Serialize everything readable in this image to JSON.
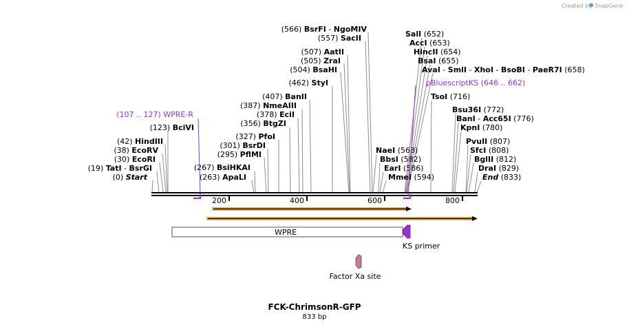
{
  "credit": {
    "text": "Created by",
    "brand": "SnapGene"
  },
  "title": "FCK-ChrimsonR-GFP",
  "length_label": "833 bp",
  "ruler_ticks": [
    "200",
    "400",
    "600",
    "800"
  ],
  "sites": [
    {
      "id": "bsrfi",
      "pos": "(566)",
      "name": "BsrFI",
      "alt": "NgoMIV"
    },
    {
      "id": "sacii",
      "pos": "(557)",
      "name": "SacII"
    },
    {
      "id": "aatii",
      "pos": "(507)",
      "name": "AatII"
    },
    {
      "id": "zrai",
      "pos": "(505)",
      "name": "ZraI"
    },
    {
      "id": "bsahi",
      "pos": "(504)",
      "name": "BsaHI"
    },
    {
      "id": "styi",
      "pos": "(462)",
      "name": "StyI"
    },
    {
      "id": "banii",
      "pos": "(407)",
      "name": "BanII"
    },
    {
      "id": "nmeaiii",
      "pos": "(387)",
      "name": "NmeAIII"
    },
    {
      "id": "ecii",
      "pos": "(378)",
      "name": "EciI"
    },
    {
      "id": "btgzi",
      "pos": "(356)",
      "name": "BtgZI"
    },
    {
      "id": "pfoi",
      "pos": "(327)",
      "name": "PfoI"
    },
    {
      "id": "bsrdi",
      "pos": "(301)",
      "name": "BsrDI"
    },
    {
      "id": "pflmi",
      "pos": "(295)",
      "name": "PflMI"
    },
    {
      "id": "bsihkai",
      "pos": "(267)",
      "name": "BsiHKAI"
    },
    {
      "id": "apali",
      "pos": "(263)",
      "name": "ApaLI"
    },
    {
      "id": "bcivi",
      "pos": "(123)",
      "name": "BciVI"
    },
    {
      "id": "hindiii",
      "pos": "(42)",
      "name": "HindIII"
    },
    {
      "id": "ecorv",
      "pos": "(38)",
      "name": "EcoRV"
    },
    {
      "id": "ecori",
      "pos": "(30)",
      "name": "EcoRI"
    },
    {
      "id": "tati",
      "pos": "(19)",
      "name": "TatI",
      "alt": "BsrGI"
    },
    {
      "id": "start",
      "pos": "(0)",
      "name": "Start"
    },
    {
      "id": "sali",
      "pos": "(652)",
      "name": "SalI"
    },
    {
      "id": "acci",
      "pos": "(653)",
      "name": "AccI"
    },
    {
      "id": "hincii",
      "pos": "(654)",
      "name": "HincII"
    },
    {
      "id": "bsai",
      "pos": "(655)",
      "name": "BsaI"
    },
    {
      "id": "avai",
      "pos": "(658)",
      "name": "AvaI",
      "more": [
        "SmlI",
        "XhoI",
        "BsoBI",
        "PaeR7I"
      ]
    },
    {
      "id": "tsoi",
      "pos": "(716)",
      "name": "TsoI"
    },
    {
      "id": "bsu36i",
      "pos": "(772)",
      "name": "Bsu36I"
    },
    {
      "id": "bani",
      "pos": "(776)",
      "name": "BanI",
      "alt": "Acc65I"
    },
    {
      "id": "kpni",
      "pos": "(780)",
      "name": "KpnI"
    },
    {
      "id": "pvuii",
      "pos": "(807)",
      "name": "PvuII"
    },
    {
      "id": "sfci",
      "pos": "(808)",
      "name": "SfcI"
    },
    {
      "id": "bglii",
      "pos": "(812)",
      "name": "BglII"
    },
    {
      "id": "drai",
      "pos": "(829)",
      "name": "DraI"
    },
    {
      "id": "end",
      "pos": "(833)",
      "name": "End"
    },
    {
      "id": "naei",
      "pos": "(568)",
      "name": "NaeI"
    },
    {
      "id": "bbsi",
      "pos": "(582)",
      "name": "BbsI"
    },
    {
      "id": "eari",
      "pos": "(586)",
      "name": "EarI"
    },
    {
      "id": "mmei",
      "pos": "(594)",
      "name": "MmeI"
    }
  ],
  "primer_labels": {
    "wpre_r": {
      "range": "(107 .. 127)",
      "name": "WPRE-R"
    },
    "pbluescript": {
      "name": "pBluescriptKS",
      "range": "(646 .. 662)"
    }
  },
  "features": {
    "wpre": "WPRE",
    "ks_primer": "KS primer",
    "factor_xa": "Factor Xa site"
  },
  "colors": {
    "backbone": "#000000",
    "orf_outline": "#f2b23a",
    "primer": "#9b30d9",
    "factor_xa": "#c57b97"
  }
}
